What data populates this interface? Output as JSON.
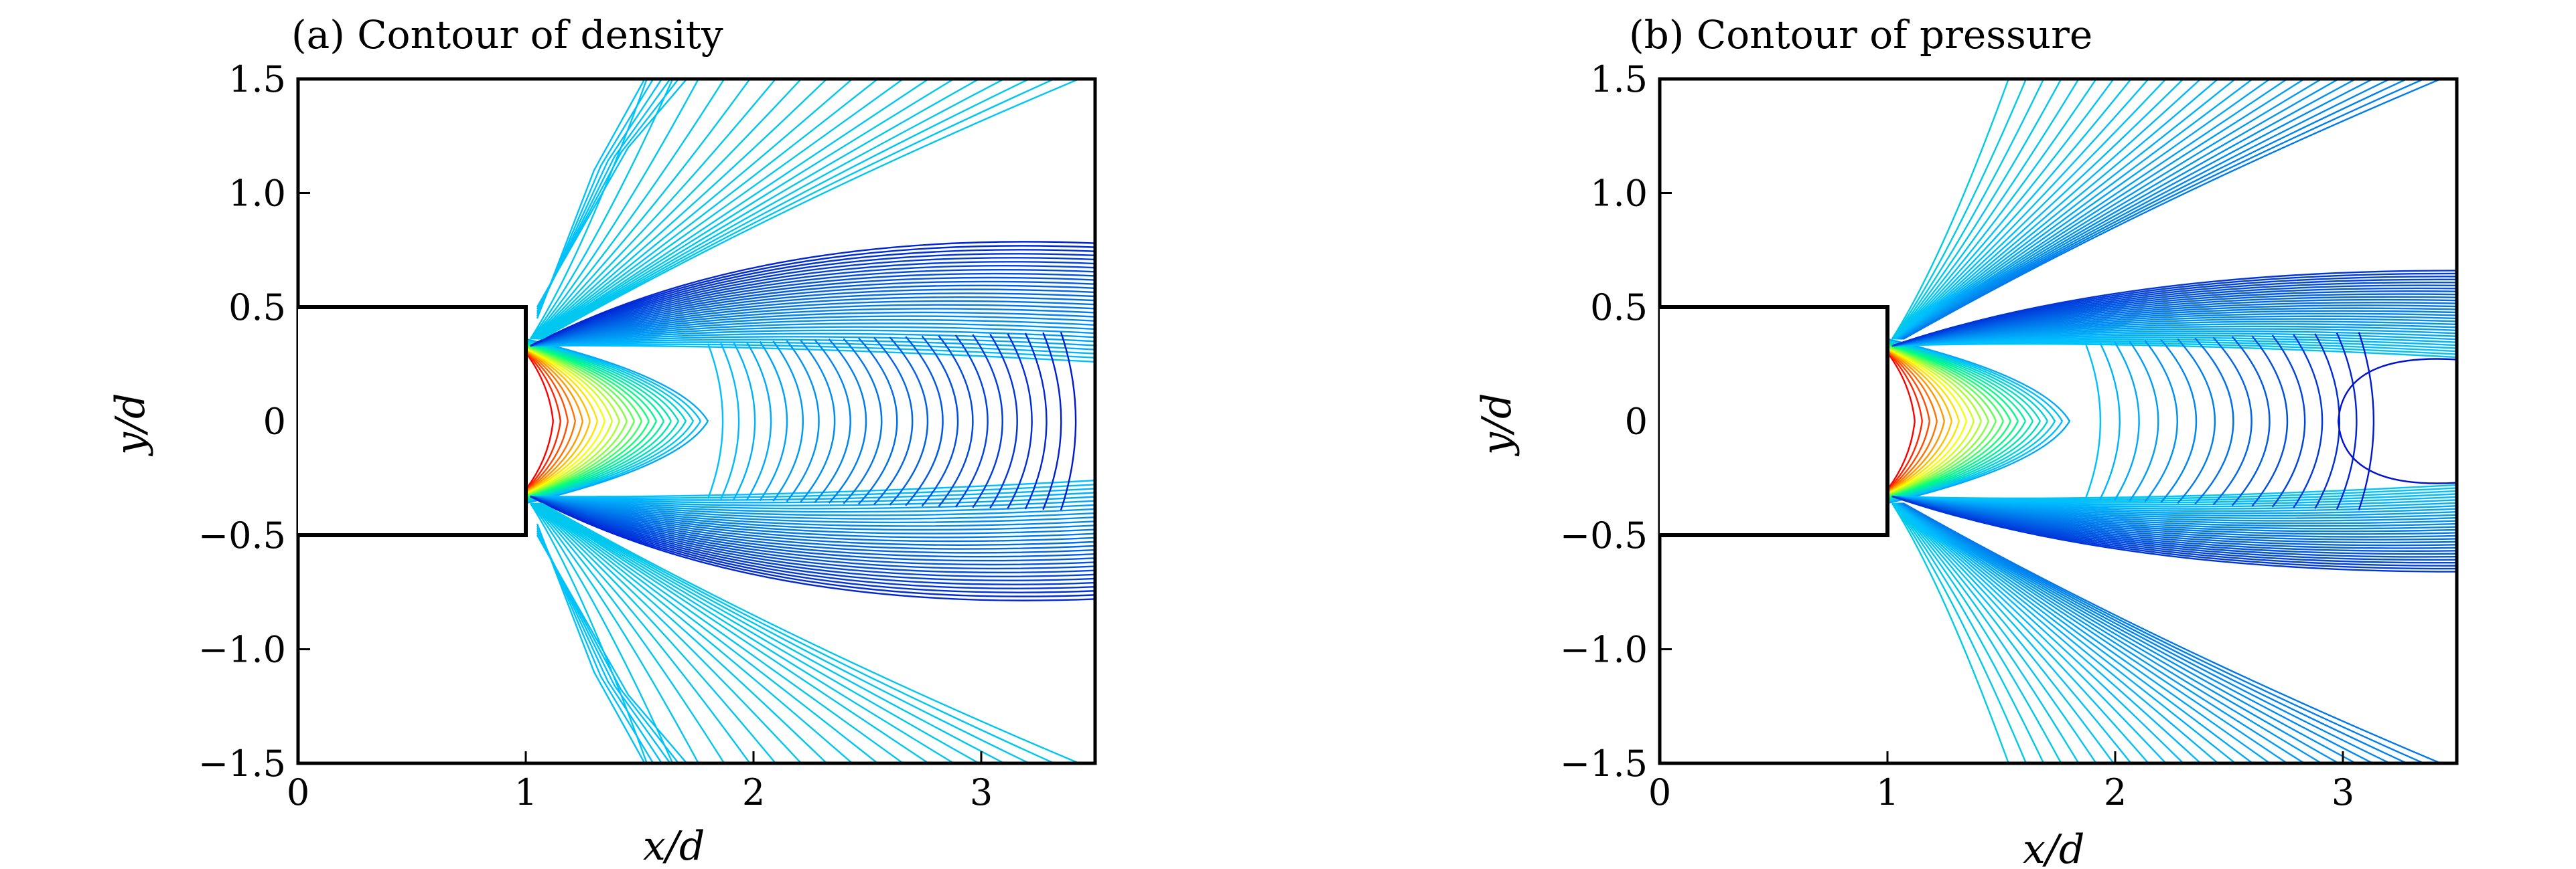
{
  "chart_data": [
    {
      "type": "contour",
      "title": "(a) Contour of density",
      "xlabel": "x/d",
      "ylabel": "y/d",
      "xlim": [
        0,
        3.5
      ],
      "ylim": [
        -1.5,
        1.5
      ],
      "xticks": [
        "0",
        "1",
        "2",
        "3"
      ],
      "yticks": [
        "1.5",
        "1.0",
        "0.5",
        "0",
        "−0.5",
        "−1.0",
        "−1.5"
      ],
      "xtick_values": [
        0,
        1,
        2,
        3
      ],
      "ytick_values": [
        1.5,
        1.0,
        0.5,
        0,
        -0.5,
        -1.0,
        -1.5
      ],
      "body_outline": [
        [
          0,
          0.5
        ],
        [
          1,
          0.5
        ],
        [
          1,
          -0.5
        ],
        [
          0,
          -0.5
        ]
      ],
      "colormap": [
        "#0000cc",
        "#00bfff",
        "#00ff80",
        "#ffff00",
        "#ff0000"
      ],
      "mode": "density"
    },
    {
      "type": "contour",
      "title": "(b) Contour of pressure",
      "xlabel": "x/d",
      "ylabel": "y/d",
      "xlim": [
        0,
        3.5
      ],
      "ylim": [
        -1.5,
        1.5
      ],
      "xticks": [
        "0",
        "1",
        "2",
        "3"
      ],
      "yticks": [
        "1.5",
        "1.0",
        "0.5",
        "0",
        "−0.5",
        "−1.0",
        "−1.5"
      ],
      "xtick_values": [
        0,
        1,
        2,
        3
      ],
      "ytick_values": [
        1.5,
        1.0,
        0.5,
        0,
        -0.5,
        -1.0,
        -1.5
      ],
      "body_outline": [
        [
          0,
          0.5
        ],
        [
          1,
          0.5
        ],
        [
          1,
          -0.5
        ],
        [
          0,
          -0.5
        ]
      ],
      "colormap": [
        "#0000cc",
        "#00bfff",
        "#00ff80",
        "#ffff00",
        "#ff0000"
      ],
      "mode": "pressure"
    }
  ]
}
